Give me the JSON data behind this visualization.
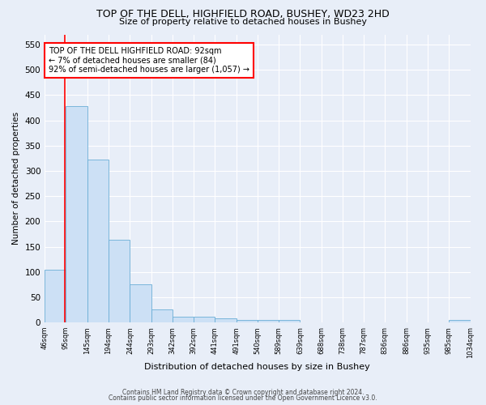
{
  "title": "TOP OF THE DELL, HIGHFIELD ROAD, BUSHEY, WD23 2HD",
  "subtitle": "Size of property relative to detached houses in Bushey",
  "xlabel": "Distribution of detached houses by size in Bushey",
  "ylabel": "Number of detached properties",
  "bar_values": [
    104,
    428,
    322,
    164,
    76,
    25,
    12,
    12,
    8,
    5,
    5,
    5,
    0,
    0,
    0,
    0,
    0,
    0,
    0,
    5
  ],
  "bin_edges": [
    46,
    95,
    145,
    194,
    244,
    293,
    342,
    392,
    441,
    491,
    540,
    589,
    639,
    688,
    738,
    787,
    836,
    886,
    935,
    985,
    1034
  ],
  "tick_labels": [
    "46sqm",
    "95sqm",
    "145sqm",
    "194sqm",
    "244sqm",
    "293sqm",
    "342sqm",
    "392sqm",
    "441sqm",
    "491sqm",
    "540sqm",
    "589sqm",
    "639sqm",
    "688sqm",
    "738sqm",
    "787sqm",
    "836sqm",
    "886sqm",
    "935sqm",
    "985sqm",
    "1034sqm"
  ],
  "bar_color": "#cce0f5",
  "bar_edge_color": "#6aaed6",
  "red_line_x": 92,
  "ylim": [
    0,
    570
  ],
  "yticks": [
    0,
    50,
    100,
    150,
    200,
    250,
    300,
    350,
    400,
    450,
    500,
    550
  ],
  "annotation_title": "TOP OF THE DELL HIGHFIELD ROAD: 92sqm",
  "annotation_line1": "← 7% of detached houses are smaller (84)",
  "annotation_line2": "92% of semi-detached houses are larger (1,057) →",
  "footer1": "Contains HM Land Registry data © Crown copyright and database right 2024.",
  "footer2": "Contains public sector information licensed under the Open Government Licence v3.0.",
  "bg_color": "#e8eef8",
  "axes_bg_color": "#e8eef8"
}
